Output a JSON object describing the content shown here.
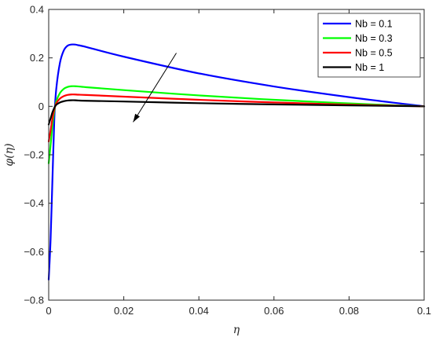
{
  "chart_data": {
    "type": "line",
    "title": "",
    "xlabel": "η",
    "ylabel": "φ(η)",
    "xlim": [
      0,
      0.1
    ],
    "ylim": [
      -0.8,
      0.4
    ],
    "xticks": [
      0,
      0.02,
      0.04,
      0.06,
      0.08,
      0.1
    ],
    "xtick_labels": [
      "0",
      "0.02",
      "0.04",
      "0.06",
      "0.08",
      "0.1"
    ],
    "yticks": [
      -0.8,
      -0.6,
      -0.4,
      -0.2,
      0,
      0.2,
      0.4
    ],
    "ytick_labels": [
      "−0.8",
      "−0.6",
      "−0.4",
      "−0.2",
      "0",
      "0.2",
      "0.4"
    ],
    "grid": false,
    "legend_position": "top-right",
    "series": [
      {
        "name": "Nb =  0.1",
        "color": "#0000ff",
        "x": [
          0,
          0.0005,
          0.001,
          0.0015,
          0.002,
          0.003,
          0.004,
          0.005,
          0.006,
          0.007,
          0.008,
          0.01,
          0.02,
          0.04,
          0.06,
          0.08,
          0.1
        ],
        "y": [
          -0.715,
          -0.55,
          -0.3,
          -0.05,
          0.07,
          0.18,
          0.23,
          0.25,
          0.255,
          0.255,
          0.252,
          0.245,
          0.205,
          0.136,
          0.082,
          0.038,
          0.0
        ]
      },
      {
        "name": "Nb =  0.3",
        "color": "#00ff00",
        "x": [
          0,
          0.0005,
          0.001,
          0.0015,
          0.002,
          0.003,
          0.004,
          0.005,
          0.006,
          0.007,
          0.008,
          0.01,
          0.02,
          0.04,
          0.06,
          0.08,
          0.1
        ],
        "y": [
          -0.235,
          -0.16,
          -0.08,
          -0.02,
          0.02,
          0.055,
          0.072,
          0.08,
          0.083,
          0.083,
          0.082,
          0.079,
          0.067,
          0.045,
          0.027,
          0.012,
          0.0
        ]
      },
      {
        "name": "Nb =  0.5",
        "color": "#ff0000",
        "x": [
          0,
          0.0005,
          0.001,
          0.0015,
          0.002,
          0.003,
          0.004,
          0.005,
          0.006,
          0.007,
          0.008,
          0.01,
          0.02,
          0.04,
          0.06,
          0.08,
          0.1
        ],
        "y": [
          -0.145,
          -0.1,
          -0.05,
          -0.012,
          0.012,
          0.032,
          0.042,
          0.047,
          0.049,
          0.049,
          0.048,
          0.047,
          0.04,
          0.027,
          0.016,
          0.007,
          0.0
        ]
      },
      {
        "name": "Nb =  1",
        "color": "#000000",
        "x": [
          0,
          0.0005,
          0.001,
          0.0015,
          0.002,
          0.003,
          0.004,
          0.005,
          0.006,
          0.007,
          0.008,
          0.01,
          0.02,
          0.04,
          0.06,
          0.08,
          0.1
        ],
        "y": [
          -0.075,
          -0.05,
          -0.025,
          -0.006,
          0.006,
          0.016,
          0.021,
          0.024,
          0.025,
          0.025,
          0.024,
          0.023,
          0.02,
          0.013,
          0.008,
          0.004,
          0.0
        ]
      }
    ],
    "annotations": [
      {
        "type": "arrow",
        "from": [
          0.034,
          0.22
        ],
        "to": [
          0.0225,
          -0.065
        ]
      }
    ]
  }
}
